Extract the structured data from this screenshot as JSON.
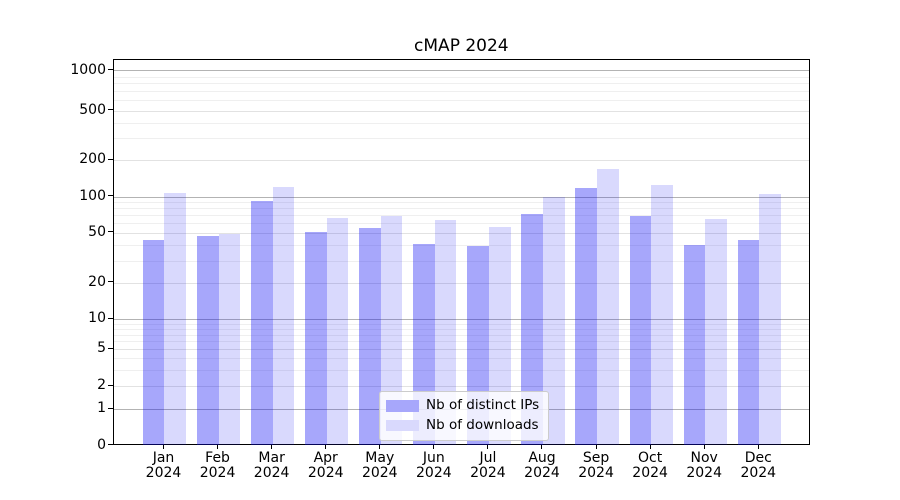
{
  "chart_data": {
    "type": "bar",
    "title": "cMAP 2024",
    "categories": [
      "Jan",
      "Feb",
      "Mar",
      "Apr",
      "May",
      "Jun",
      "Jul",
      "Aug",
      "Sep",
      "Oct",
      "Nov",
      "Dec"
    ],
    "x_year_suffix": "2024",
    "series": [
      {
        "name": "Nb of distinct IPs",
        "color": "rgba(10,10,245,0.36)",
        "legend_color": "#a7a7fb",
        "values": [
          44,
          47,
          93,
          51,
          55,
          41,
          39,
          72,
          119,
          69,
          40,
          44
        ]
      },
      {
        "name": "Nb of downloads",
        "color": "rgba(10,10,245,0.155)",
        "legend_color": "#d9d9fd",
        "values": [
          107,
          49,
          120,
          66,
          69,
          64,
          56,
          100,
          171,
          126,
          65,
          105
        ]
      }
    ],
    "yticks": [
      0,
      1,
      2,
      5,
      10,
      20,
      50,
      100,
      200,
      500,
      1000
    ],
    "yaxis_scale": "symlog",
    "ylim": [
      0,
      1400
    ],
    "xlabel": "",
    "ylabel": "",
    "grid": true,
    "legend_position": "bottom-center"
  }
}
